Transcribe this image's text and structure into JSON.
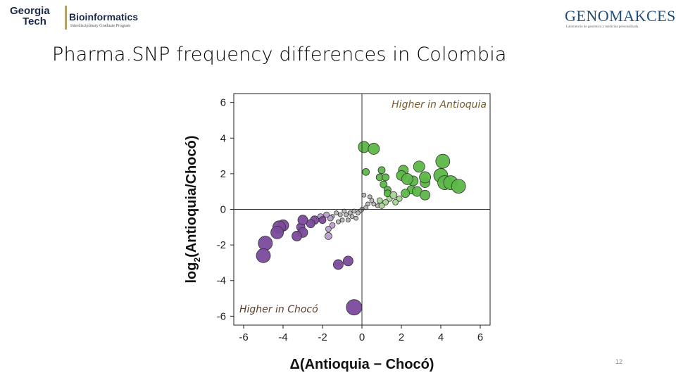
{
  "header": {
    "left_logo": {
      "line1": "Georgia",
      "line2": "Tech",
      "title": "Bioinformatics",
      "subtitle": "Interdisciplinary Graduate Program"
    },
    "right_logo": {
      "title": "GENOMAKCES",
      "subtitle": "Laboratorio de genómica y medicina personalizada"
    },
    "colors": {
      "gt_navy": "#1b2a4a",
      "gt_gold": "#b3a369",
      "genomaces_blue": "#244e7a",
      "genomaces_green": "#8cc63f"
    }
  },
  "slide": {
    "title": "Pharma.SNP frequency differences in Colombia",
    "page_number": "12"
  },
  "chart_data": {
    "type": "scatter",
    "xlabel": "Δ(Antioquia − Chocó)",
    "ylabel_main": "log",
    "ylabel_sub": "2",
    "ylabel_rest": "(Antioquia/Chocó)",
    "xlim": [
      -6.5,
      6.5
    ],
    "ylim": [
      -6.5,
      6.5
    ],
    "x_ticks": [
      -6,
      -4,
      -2,
      0,
      2,
      4,
      6
    ],
    "y_ticks": [
      -6,
      -4,
      -2,
      0,
      2,
      4,
      6
    ],
    "grid": false,
    "reference_lines": {
      "x": 0,
      "y": 0
    },
    "annotations": {
      "top_right": "Higher in Antioquia",
      "bottom_left": "Higher in Chocó"
    },
    "colors": {
      "antioquia": "#5cb848",
      "choco": "#7b4a9c",
      "antioquia_light": "#a7d394",
      "choco_light": "#bb9fcf",
      "neutral": "#b5b5b5",
      "edge": "#333333"
    },
    "points": [
      {
        "x": 0.1,
        "y": 3.5,
        "size": 8,
        "group": "antioquia"
      },
      {
        "x": 0.6,
        "y": 3.4,
        "size": 8,
        "group": "antioquia"
      },
      {
        "x": 0.2,
        "y": 2.1,
        "size": 5,
        "group": "antioquia"
      },
      {
        "x": 1.0,
        "y": 2.2,
        "size": 5,
        "group": "antioquia"
      },
      {
        "x": 0.9,
        "y": 1.8,
        "size": 5,
        "group": "antioquia"
      },
      {
        "x": 1.2,
        "y": 1.8,
        "size": 5,
        "group": "antioquia"
      },
      {
        "x": 1.1,
        "y": 1.4,
        "size": 5,
        "group": "antioquia"
      },
      {
        "x": 1.3,
        "y": 1.1,
        "size": 5,
        "group": "antioquia"
      },
      {
        "x": 1.3,
        "y": 0.9,
        "size": 5,
        "group": "antioquia"
      },
      {
        "x": 2.1,
        "y": 2.2,
        "size": 7,
        "group": "antioquia"
      },
      {
        "x": 2.0,
        "y": 1.9,
        "size": 7,
        "group": "antioquia"
      },
      {
        "x": 2.3,
        "y": 1.7,
        "size": 8,
        "group": "antioquia"
      },
      {
        "x": 2.6,
        "y": 1.6,
        "size": 7,
        "group": "antioquia"
      },
      {
        "x": 2.9,
        "y": 2.4,
        "size": 8,
        "group": "antioquia"
      },
      {
        "x": 3.2,
        "y": 1.8,
        "size": 8,
        "group": "antioquia"
      },
      {
        "x": 3.2,
        "y": 1.5,
        "size": 7,
        "group": "antioquia"
      },
      {
        "x": 2.8,
        "y": 1.0,
        "size": 7,
        "group": "antioquia"
      },
      {
        "x": 3.2,
        "y": 0.8,
        "size": 7,
        "group": "antioquia"
      },
      {
        "x": 2.5,
        "y": 1.1,
        "size": 6,
        "group": "antioquia"
      },
      {
        "x": 2.2,
        "y": 0.9,
        "size": 6,
        "group": "antioquia"
      },
      {
        "x": 4.1,
        "y": 2.7,
        "size": 10,
        "group": "antioquia"
      },
      {
        "x": 4.0,
        "y": 1.9,
        "size": 10,
        "group": "antioquia"
      },
      {
        "x": 4.2,
        "y": 1.5,
        "size": 10,
        "group": "antioquia"
      },
      {
        "x": 4.5,
        "y": 1.5,
        "size": 10,
        "group": "antioquia"
      },
      {
        "x": 4.9,
        "y": 1.3,
        "size": 10,
        "group": "antioquia"
      },
      {
        "x": 1.6,
        "y": 0.8,
        "size": 5,
        "group": "antioquia_light"
      },
      {
        "x": 1.9,
        "y": 0.6,
        "size": 4,
        "group": "antioquia_light"
      },
      {
        "x": 1.7,
        "y": 0.4,
        "size": 4,
        "group": "antioquia_light"
      },
      {
        "x": 1.4,
        "y": 0.6,
        "size": 4,
        "group": "antioquia_light"
      },
      {
        "x": 1.2,
        "y": 0.4,
        "size": 4,
        "group": "antioquia_light"
      },
      {
        "x": 0.9,
        "y": 0.5,
        "size": 4,
        "group": "antioquia_light"
      },
      {
        "x": 1.0,
        "y": 0.2,
        "size": 4,
        "group": "antioquia_light"
      },
      {
        "x": 0.1,
        "y": 0.8,
        "size": 3,
        "group": "neutral"
      },
      {
        "x": 0.4,
        "y": 0.7,
        "size": 3,
        "group": "neutral"
      },
      {
        "x": 0.5,
        "y": 0.5,
        "size": 3,
        "group": "neutral"
      },
      {
        "x": 0.6,
        "y": 0.3,
        "size": 3,
        "group": "neutral"
      },
      {
        "x": 0.3,
        "y": 0.3,
        "size": 3,
        "group": "neutral"
      },
      {
        "x": 0.8,
        "y": 0.2,
        "size": 3,
        "group": "neutral"
      },
      {
        "x": 0.2,
        "y": 0.1,
        "size": 3,
        "group": "neutral"
      },
      {
        "x": 0.0,
        "y": 0.0,
        "size": 3,
        "group": "neutral"
      },
      {
        "x": -0.1,
        "y": -0.1,
        "size": 3,
        "group": "neutral"
      },
      {
        "x": -0.2,
        "y": -0.2,
        "size": 3,
        "group": "neutral"
      },
      {
        "x": -0.4,
        "y": -0.1,
        "size": 3,
        "group": "neutral"
      },
      {
        "x": -0.6,
        "y": -0.2,
        "size": 3,
        "group": "neutral"
      },
      {
        "x": -0.8,
        "y": -0.3,
        "size": 3,
        "group": "neutral"
      },
      {
        "x": -0.9,
        "y": -0.1,
        "size": 3,
        "group": "neutral"
      },
      {
        "x": -1.1,
        "y": -0.3,
        "size": 3,
        "group": "neutral"
      },
      {
        "x": -1.3,
        "y": -0.2,
        "size": 3,
        "group": "neutral"
      },
      {
        "x": -1.5,
        "y": -0.4,
        "size": 3,
        "group": "neutral"
      },
      {
        "x": -0.5,
        "y": -0.4,
        "size": 3,
        "group": "neutral"
      },
      {
        "x": -0.3,
        "y": -0.5,
        "size": 3,
        "group": "neutral"
      },
      {
        "x": -1.0,
        "y": -0.6,
        "size": 3,
        "group": "neutral"
      },
      {
        "x": -0.7,
        "y": -0.6,
        "size": 3,
        "group": "neutral"
      },
      {
        "x": -1.2,
        "y": -0.7,
        "size": 3,
        "group": "neutral"
      },
      {
        "x": -1.6,
        "y": -0.5,
        "size": 4,
        "group": "choco_light"
      },
      {
        "x": -1.8,
        "y": -0.3,
        "size": 4,
        "group": "choco_light"
      },
      {
        "x": -1.5,
        "y": -0.9,
        "size": 4,
        "group": "choco_light"
      },
      {
        "x": -1.7,
        "y": -1.1,
        "size": 4,
        "group": "choco_light"
      },
      {
        "x": -1.7,
        "y": -1.5,
        "size": 5,
        "group": "choco_light"
      },
      {
        "x": -2.1,
        "y": -0.4,
        "size": 4,
        "group": "choco_light"
      },
      {
        "x": -2.0,
        "y": -0.6,
        "size": 5,
        "group": "choco"
      },
      {
        "x": -2.4,
        "y": -0.6,
        "size": 6,
        "group": "choco"
      },
      {
        "x": -2.6,
        "y": -0.8,
        "size": 6,
        "group": "choco"
      },
      {
        "x": -3.0,
        "y": -0.6,
        "size": 7,
        "group": "choco"
      },
      {
        "x": -3.1,
        "y": -1.0,
        "size": 6,
        "group": "choco"
      },
      {
        "x": -3.0,
        "y": -1.3,
        "size": 7,
        "group": "choco"
      },
      {
        "x": -3.3,
        "y": -1.5,
        "size": 7,
        "group": "choco"
      },
      {
        "x": -4.0,
        "y": -0.9,
        "size": 8,
        "group": "choco"
      },
      {
        "x": -4.2,
        "y": -1.0,
        "size": 9,
        "group": "choco"
      },
      {
        "x": -4.3,
        "y": -1.3,
        "size": 9,
        "group": "choco"
      },
      {
        "x": -4.9,
        "y": -1.9,
        "size": 10,
        "group": "choco"
      },
      {
        "x": -5.0,
        "y": -2.6,
        "size": 10,
        "group": "choco"
      },
      {
        "x": -1.2,
        "y": -3.1,
        "size": 7,
        "group": "choco"
      },
      {
        "x": -0.7,
        "y": -2.9,
        "size": 7,
        "group": "choco"
      },
      {
        "x": -0.4,
        "y": -5.5,
        "size": 11,
        "group": "choco"
      }
    ]
  }
}
